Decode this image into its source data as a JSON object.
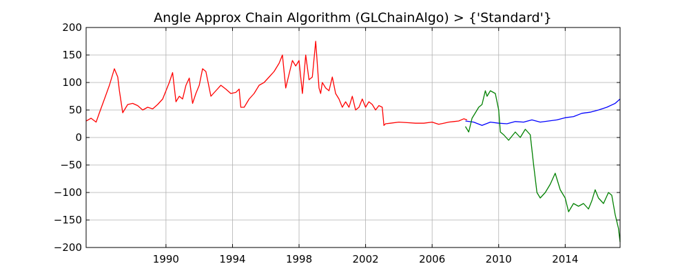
{
  "chart_data": {
    "type": "line",
    "title": "Angle Approx Chain Algorithm (GLChainAlgo) > {'Standard'}",
    "xlabel": "",
    "ylabel": "",
    "xlim": [
      1985.2,
      2017.3
    ],
    "ylim": [
      -200,
      200
    ],
    "grid": true,
    "x_ticks": [
      1990,
      1994,
      1998,
      2002,
      2006,
      2010,
      2014
    ],
    "x_tick_labels": [
      "1990",
      "1994",
      "1998",
      "2002",
      "2006",
      "2010",
      "2014"
    ],
    "y_ticks": [
      200,
      150,
      100,
      50,
      0,
      -50,
      -100,
      -150,
      -200
    ],
    "y_tick_labels": [
      "200",
      "150",
      "100",
      "50",
      "0",
      "−50",
      "−100",
      "−150",
      "−200"
    ],
    "series": [
      {
        "color": "#ff0000",
        "x": [
          1985.2,
          1985.5,
          1985.8,
          1986.0,
          1986.3,
          1986.6,
          1986.9,
          1987.1,
          1987.2,
          1987.4,
          1987.6,
          1987.7,
          1988.0,
          1988.3,
          1988.6,
          1988.9,
          1989.2,
          1989.5,
          1989.8,
          1990.0,
          1990.2,
          1990.4,
          1990.6,
          1990.8,
          1991.0,
          1991.2,
          1991.4,
          1991.6,
          1991.8,
          1992.0,
          1992.2,
          1992.4,
          1992.7,
          1993.0,
          1993.3,
          1993.6,
          1993.9,
          1994.2,
          1994.4,
          1994.5,
          1994.7,
          1995.0,
          1995.3,
          1995.6,
          1995.9,
          1996.2,
          1996.5,
          1996.8,
          1997.0,
          1997.2,
          1997.4,
          1997.6,
          1997.8,
          1998.0,
          1998.2,
          1998.4,
          1998.6,
          1998.8,
          1999.0,
          1999.2,
          1999.3,
          1999.4,
          1999.6,
          1999.8,
          2000.0,
          2000.2,
          2000.4,
          2000.6,
          2000.8,
          2001.0,
          2001.2,
          2001.4,
          2001.6,
          2001.8,
          2002.0,
          2002.2,
          2002.4,
          2002.6,
          2002.8,
          2003.0,
          2003.1,
          2003.2,
          2003.5,
          2004.0,
          2004.5,
          2005.0,
          2005.5,
          2006.0,
          2006.4,
          2006.7,
          2007.0,
          2007.3,
          2007.6,
          2007.9,
          2008.1
        ],
        "y": [
          30,
          35,
          28,
          45,
          70,
          95,
          125,
          110,
          85,
          45,
          55,
          60,
          62,
          58,
          50,
          55,
          52,
          60,
          70,
          85,
          100,
          118,
          65,
          75,
          70,
          95,
          108,
          62,
          80,
          95,
          125,
          120,
          75,
          85,
          95,
          88,
          80,
          82,
          88,
          55,
          55,
          70,
          80,
          95,
          100,
          110,
          120,
          135,
          150,
          90,
          115,
          140,
          130,
          140,
          80,
          150,
          105,
          110,
          175,
          90,
          80,
          100,
          90,
          85,
          110,
          80,
          70,
          55,
          65,
          55,
          75,
          50,
          55,
          70,
          55,
          65,
          60,
          50,
          58,
          55,
          22,
          25,
          26,
          28,
          27,
          26,
          26,
          28,
          24,
          26,
          28,
          29,
          30,
          34,
          32
        ]
      },
      {
        "color": "#0000ff",
        "x": [
          2008.0,
          2008.5,
          2009.0,
          2009.5,
          2010.0,
          2010.5,
          2011.0,
          2011.5,
          2012.0,
          2012.5,
          2013.0,
          2013.5,
          2014.0,
          2014.5,
          2015.0,
          2015.5,
          2016.0,
          2016.5,
          2017.0,
          2017.3
        ],
        "y": [
          30,
          28,
          22,
          28,
          26,
          25,
          29,
          28,
          32,
          28,
          30,
          32,
          36,
          38,
          44,
          46,
          50,
          55,
          62,
          70
        ]
      },
      {
        "color": "#008000",
        "x": [
          2008.0,
          2008.2,
          2008.4,
          2008.6,
          2008.8,
          2009.0,
          2009.2,
          2009.3,
          2009.5,
          2009.8,
          2010.0,
          2010.1,
          2010.3,
          2010.6,
          2011.0,
          2011.3,
          2011.6,
          2011.9,
          2012.1,
          2012.3,
          2012.5,
          2012.8,
          2013.1,
          2013.4,
          2013.7,
          2014.0,
          2014.2,
          2014.5,
          2014.8,
          2015.1,
          2015.4,
          2015.6,
          2015.8,
          2016.0,
          2016.3,
          2016.6,
          2016.8,
          2017.0,
          2017.2,
          2017.3
        ],
        "y": [
          20,
          10,
          35,
          45,
          55,
          60,
          85,
          75,
          85,
          80,
          50,
          10,
          5,
          -5,
          10,
          0,
          15,
          5,
          -50,
          -100,
          -110,
          -100,
          -85,
          -65,
          -95,
          -110,
          -135,
          -120,
          -125,
          -120,
          -130,
          -115,
          -95,
          -110,
          -120,
          -100,
          -105,
          -140,
          -165,
          -190
        ]
      }
    ]
  }
}
